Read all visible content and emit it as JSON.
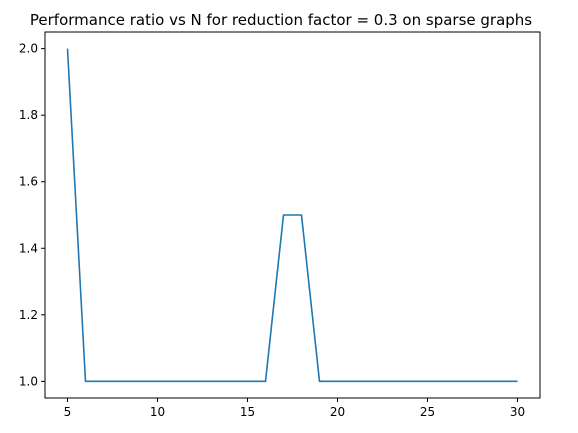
{
  "chart_data": {
    "type": "line",
    "title": "Performance ratio vs N for reduction factor = 0.3 on sparse graphs",
    "xlabel": "",
    "ylabel": "",
    "xlim": [
      3.75,
      31.25
    ],
    "ylim": [
      0.95,
      2.05
    ],
    "xticks": [
      5,
      10,
      15,
      20,
      25,
      30
    ],
    "xtick_labels": [
      "5",
      "10",
      "15",
      "20",
      "25",
      "30"
    ],
    "yticks": [
      1.0,
      1.2,
      1.4,
      1.6,
      1.8,
      2.0
    ],
    "ytick_labels": [
      "1.0",
      "1.2",
      "1.4",
      "1.6",
      "1.8",
      "2.0"
    ],
    "grid": false,
    "series": [
      {
        "color": "#1f77b4",
        "x": [
          5,
          6,
          7,
          8,
          9,
          10,
          11,
          12,
          13,
          14,
          15,
          16,
          17,
          18,
          19,
          20,
          21,
          22,
          23,
          24,
          25,
          26,
          27,
          28,
          29,
          30
        ],
        "y": [
          2.0,
          1.0,
          1.0,
          1.0,
          1.0,
          1.0,
          1.0,
          1.0,
          1.0,
          1.0,
          1.0,
          1.0,
          1.5,
          1.5,
          1.0,
          1.0,
          1.0,
          1.0,
          1.0,
          1.0,
          1.0,
          1.0,
          1.0,
          1.0,
          1.0,
          1.0
        ]
      }
    ]
  }
}
